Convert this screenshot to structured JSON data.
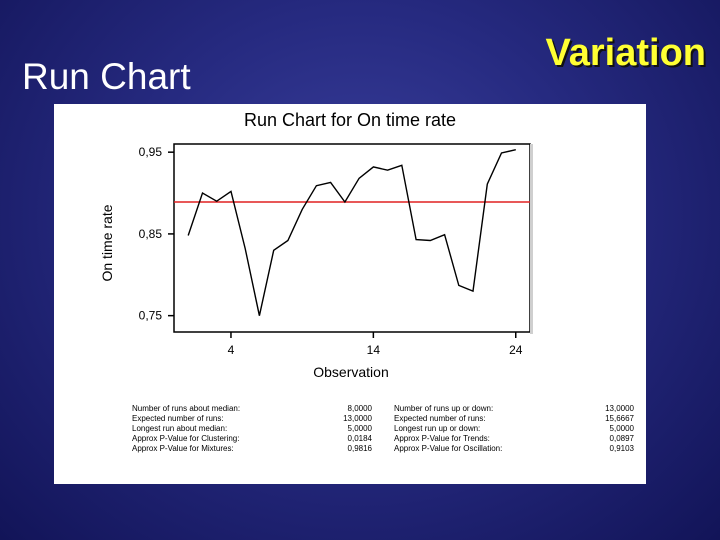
{
  "slide": {
    "title": "Run Chart",
    "heading": "Variation"
  },
  "chart_data": {
    "type": "line",
    "title": "Run Chart for On time rate",
    "xlabel": "Observation",
    "ylabel": "On time rate",
    "x_ticks": [
      4,
      14,
      24
    ],
    "y_ticks": [
      {
        "value": 0.75,
        "label": "0,75"
      },
      {
        "value": 0.85,
        "label": "0,85"
      },
      {
        "value": 0.95,
        "label": "0,95"
      }
    ],
    "xlim": [
      0,
      25
    ],
    "ylim": [
      0.73,
      0.96
    ],
    "median": 0.889,
    "x": [
      1,
      2,
      3,
      4,
      5,
      6,
      7,
      8,
      9,
      10,
      11,
      12,
      13,
      14,
      15,
      16,
      17,
      18,
      19,
      20,
      21,
      22,
      23,
      24
    ],
    "values": [
      0.848,
      0.9,
      0.89,
      0.902,
      0.832,
      0.75,
      0.83,
      0.842,
      0.88,
      0.909,
      0.913,
      0.889,
      0.918,
      0.932,
      0.928,
      0.934,
      0.843,
      0.842,
      0.849,
      0.787,
      0.78,
      0.911,
      0.949,
      0.953
    ],
    "line_color": "#000000",
    "median_color": "#e02020"
  },
  "stats": {
    "left": [
      {
        "label": "Number of runs about median:",
        "value": "8,0000"
      },
      {
        "label": "Expected number of runs:",
        "value": "13,0000"
      },
      {
        "label": "Longest run about median:",
        "value": "5,0000"
      },
      {
        "label": "Approx P-Value for Clustering:",
        "value": "0,0184"
      },
      {
        "label": "Approx P-Value for Mixtures:",
        "value": "0,9816"
      }
    ],
    "right": [
      {
        "label": "Number of runs up or down:",
        "value": "13,0000"
      },
      {
        "label": "Expected number of runs:",
        "value": "15,6667"
      },
      {
        "label": "Longest run up or down:",
        "value": "5,0000"
      },
      {
        "label": "Approx P-Value for Trends:",
        "value": "0,0897"
      },
      {
        "label": "Approx P-Value for Oscillation:",
        "value": "0,9103"
      }
    ]
  }
}
